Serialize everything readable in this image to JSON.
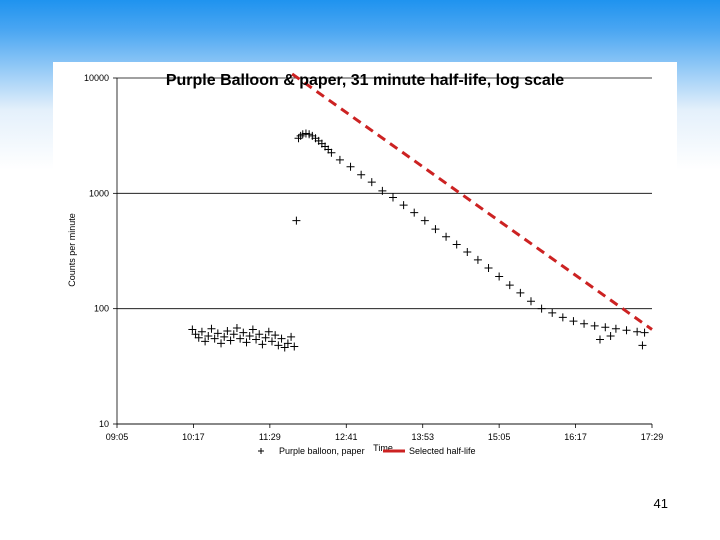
{
  "slide": {
    "number": "41"
  },
  "chart_data": {
    "type": "scatter",
    "title": "Purple Balloon & paper, 31 minute half-life, log scale",
    "xlabel": "Time",
    "ylabel": "Counts per minute",
    "y_scale": "log",
    "ylim": [
      10,
      10000
    ],
    "y_ticks": [
      "10",
      "100",
      "1000",
      "10000"
    ],
    "x_ticks": [
      "09:05",
      "10:17",
      "11:29",
      "12:41",
      "13:53",
      "15:05",
      "16:17",
      "17:29"
    ],
    "xlim": [
      "09:05",
      "17:29"
    ],
    "grid": "horizontal",
    "legend_position": "bottom",
    "series": [
      {
        "name": "Purple balloon, paper",
        "marker": "plus",
        "color": "#000000",
        "points": [
          [
            "10:16",
            66
          ],
          [
            "10:19",
            60
          ],
          [
            "10:22",
            56
          ],
          [
            "10:25",
            63
          ],
          [
            "10:28",
            52
          ],
          [
            "10:31",
            58
          ],
          [
            "10:34",
            67
          ],
          [
            "10:37",
            55
          ],
          [
            "10:40",
            61
          ],
          [
            "10:43",
            50
          ],
          [
            "10:46",
            57
          ],
          [
            "10:49",
            64
          ],
          [
            "10:52",
            53
          ],
          [
            "10:55",
            60
          ],
          [
            "10:58",
            68
          ],
          [
            "11:01",
            55
          ],
          [
            "11:04",
            62
          ],
          [
            "11:07",
            51
          ],
          [
            "11:10",
            58
          ],
          [
            "11:13",
            66
          ],
          [
            "11:16",
            54
          ],
          [
            "11:19",
            60
          ],
          [
            "11:22",
            49
          ],
          [
            "11:25",
            56
          ],
          [
            "11:28",
            63
          ],
          [
            "11:31",
            52
          ],
          [
            "11:34",
            59
          ],
          [
            "11:37",
            48
          ],
          [
            "11:40",
            55
          ],
          [
            "11:43",
            46
          ],
          [
            "11:46",
            50
          ],
          [
            "11:49",
            57
          ],
          [
            "11:52",
            47
          ],
          [
            "11:54",
            580
          ],
          [
            "11:56",
            3000
          ],
          [
            "11:58",
            3150
          ],
          [
            "12:00",
            3250
          ],
          [
            "12:03",
            3300
          ],
          [
            "12:06",
            3250
          ],
          [
            "12:09",
            3150
          ],
          [
            "12:12",
            3000
          ],
          [
            "12:15",
            2850
          ],
          [
            "12:18",
            2700
          ],
          [
            "12:21",
            2550
          ],
          [
            "12:24",
            2400
          ],
          [
            "12:27",
            2250
          ],
          [
            "12:35",
            1950
          ],
          [
            "12:45",
            1700
          ],
          [
            "12:55",
            1450
          ],
          [
            "13:05",
            1250
          ],
          [
            "13:15",
            1050
          ],
          [
            "13:25",
            920
          ],
          [
            "13:35",
            790
          ],
          [
            "13:45",
            680
          ],
          [
            "13:55",
            580
          ],
          [
            "14:05",
            490
          ],
          [
            "14:15",
            420
          ],
          [
            "14:25",
            360
          ],
          [
            "14:35",
            310
          ],
          [
            "14:45",
            265
          ],
          [
            "14:55",
            225
          ],
          [
            "15:05",
            190
          ],
          [
            "15:15",
            160
          ],
          [
            "15:25",
            137
          ],
          [
            "15:35",
            116
          ],
          [
            "15:45",
            100
          ],
          [
            "15:55",
            92
          ],
          [
            "16:05",
            84
          ],
          [
            "16:15",
            78
          ],
          [
            "16:25",
            74
          ],
          [
            "16:35",
            71
          ],
          [
            "16:45",
            69
          ],
          [
            "16:55",
            67
          ],
          [
            "17:05",
            65
          ],
          [
            "17:15",
            63
          ],
          [
            "17:22",
            62
          ],
          [
            "16:40",
            54
          ],
          [
            "16:50",
            58
          ],
          [
            "17:20",
            48
          ]
        ]
      },
      {
        "name": "Selected half-life",
        "style": "dashed-line",
        "color": "#cc2222",
        "points": [
          [
            "11:50",
            11500
          ],
          [
            "17:29",
            66
          ]
        ]
      }
    ]
  }
}
